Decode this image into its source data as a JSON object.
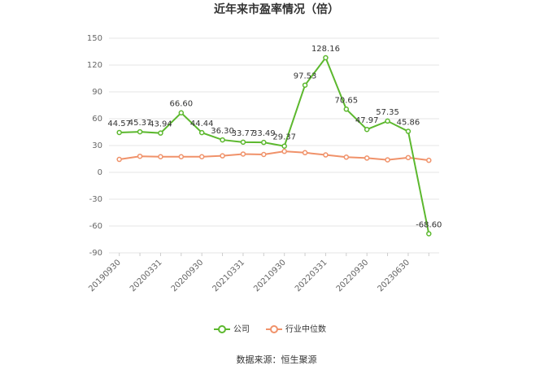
{
  "chart_data": {
    "type": "line",
    "title": "近年来市盈率情况（倍）",
    "source": "数据来源：恒生聚源",
    "categories": [
      "20190930",
      null,
      "20200331",
      null,
      "20200930",
      null,
      "20210331",
      null,
      "20210930",
      null,
      "20220331",
      null,
      "20220930",
      null,
      "20230630",
      null
    ],
    "series": [
      {
        "name": "公司",
        "color": "#5cb82e",
        "values": [
          44.57,
          45.37,
          43.94,
          66.6,
          44.44,
          36.3,
          33.77,
          33.49,
          29.37,
          97.53,
          128.16,
          70.65,
          47.97,
          57.35,
          45.86,
          -68.6
        ],
        "value_labels": [
          "44.57",
          "45.37",
          "43.94",
          "66.60",
          "44.44",
          "36.30",
          "33.77",
          "33.49",
          "29.37",
          "97.53",
          "128.16",
          "70.65",
          "47.97",
          "57.35",
          "45.86",
          "-68.60"
        ]
      },
      {
        "name": "行业中位数",
        "color": "#f0926a",
        "values": [
          14.5,
          18,
          17.5,
          17.5,
          17.5,
          18.5,
          20.5,
          20,
          23.5,
          22,
          19.5,
          17,
          16,
          14,
          16.5,
          13.5
        ]
      }
    ],
    "ylim": [
      -90,
      150
    ],
    "yticks": [
      -90,
      -60,
      -30,
      0,
      30,
      60,
      90,
      120,
      150
    ],
    "grid": true,
    "legend": "bottom"
  }
}
